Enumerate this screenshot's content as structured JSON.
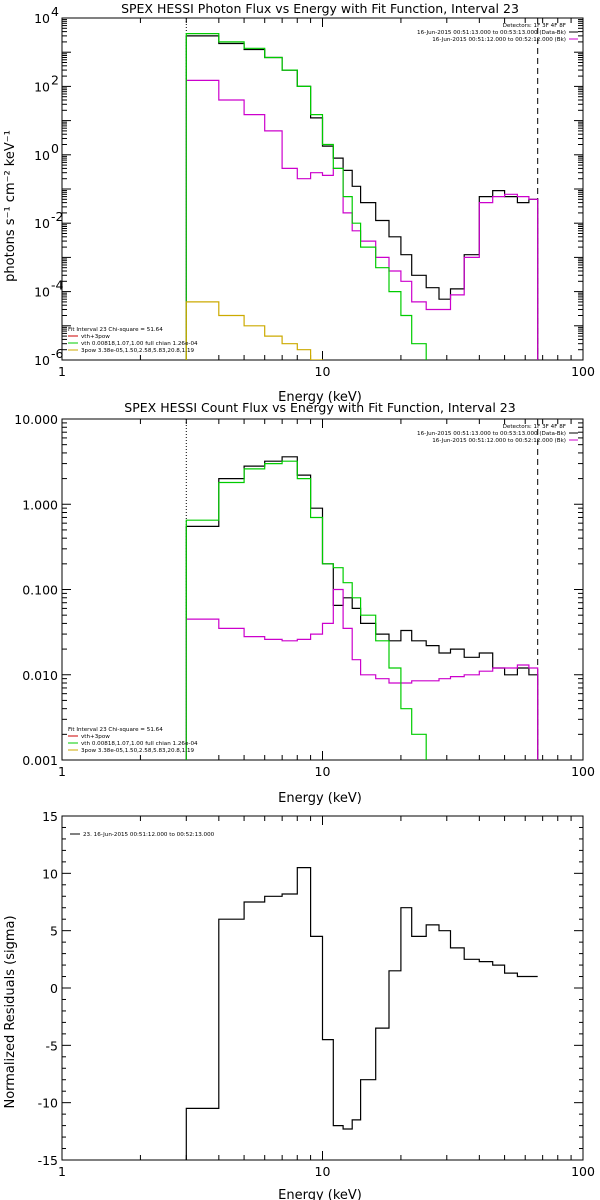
{
  "chart_data": [
    {
      "type": "line",
      "title": "SPEX HESSI Photon Flux vs Energy with Fit Function, Interval 23",
      "xlabel": "Energy (keV)",
      "ylabel": "photons s⁻¹ cm⁻² keV⁻¹",
      "xscale": "log",
      "yscale": "log",
      "xlim": [
        1,
        100
      ],
      "ylim": [
        1e-06,
        10000.0
      ],
      "x_ticks": [
        {
          "v": 1,
          "label": "1"
        },
        {
          "v": 10,
          "label": "10"
        },
        {
          "v": 100,
          "label": "100"
        }
      ],
      "y_ticks": [
        {
          "v": 1e-06,
          "base": "10",
          "exp": "-6"
        },
        {
          "v": 0.0001,
          "base": "10",
          "exp": "-4"
        },
        {
          "v": 0.01,
          "base": "10",
          "exp": "-2"
        },
        {
          "v": 1,
          "base": "10",
          "exp": "0"
        },
        {
          "v": 100,
          "base": "10",
          "exp": "2"
        },
        {
          "v": 10000.0,
          "base": "10",
          "exp": "4"
        }
      ],
      "vlines": [
        {
          "x": 3.0,
          "style": "dotted",
          "color": "#000000"
        },
        {
          "x": 67,
          "style": "dashed",
          "color": "#000000"
        }
      ],
      "legend_upper": {
        "position": "top-right",
        "lines": [
          {
            "text": "Detectors: 1F 3F 4F 8F",
            "color": null
          },
          {
            "text": "16-Jun-2015 00:51:13.000 to 00:53:13.000 (Data-Bk)",
            "color": "#000000"
          },
          {
            "text": "16-Jun-2015 00:51:12.000 to 00:52:12.000 (Bk)",
            "color": "#cc00cc"
          }
        ]
      },
      "legend_lower": {
        "position": "bottom-left",
        "lines": [
          {
            "text": "Fit Interval 23   Chi-square = 51.64",
            "color": null
          },
          {
            "text": "vth+3pow",
            "color": "#cc0000"
          },
          {
            "text": "vth 0.00818,1.07,1.00  full chian 1.26e-04",
            "color": "#00cc00"
          },
          {
            "text": "3pow 3.38e-05,1.50,2.58,5.83,20.8,1.19",
            "color": "#ccaa00"
          }
        ]
      },
      "series": [
        {
          "color": "#000000",
          "edges": [
            3,
            4,
            5,
            6,
            7,
            8,
            9,
            10,
            11,
            12,
            13,
            14,
            16,
            18,
            20,
            22,
            25,
            28,
            31,
            35,
            40,
            45,
            50,
            56,
            62,
            67
          ],
          "values": [
            3000,
            1800,
            1200,
            700,
            300,
            100,
            12,
            1.8,
            0.8,
            0.35,
            0.12,
            0.04,
            0.012,
            0.004,
            0.0012,
            0.0003,
            0.00013,
            6e-05,
            0.00012,
            0.0012,
            0.06,
            0.09,
            0.06,
            0.04,
            0.05
          ]
        },
        {
          "color": "#cc00cc",
          "edges": [
            3,
            4,
            5,
            6,
            7,
            8,
            9,
            10,
            11,
            12,
            13,
            14,
            16,
            18,
            20,
            22,
            25,
            28,
            31,
            35,
            40,
            45,
            50,
            56,
            62,
            67
          ],
          "values": [
            150,
            40,
            15,
            5,
            0.4,
            0.2,
            0.3,
            0.25,
            0.4,
            0.02,
            0.006,
            0.003,
            0.001,
            0.0004,
            0.0002,
            5e-05,
            3e-05,
            3e-05,
            8e-05,
            0.001,
            0.04,
            0.06,
            0.07,
            0.06,
            0.05
          ]
        },
        {
          "color": "#00cc00",
          "edges": [
            3,
            4,
            5,
            6,
            7,
            8,
            9,
            10,
            11,
            12,
            13,
            14,
            16,
            18,
            20,
            22,
            25
          ],
          "values": [
            3500,
            2000,
            1300,
            700,
            300,
            100,
            15,
            2,
            0.4,
            0.06,
            0.01,
            0.002,
            0.0005,
            0.0001,
            2e-05,
            3e-06
          ]
        },
        {
          "color": "#ccaa00",
          "edges": [
            3,
            4,
            5,
            6,
            7,
            8,
            9,
            10
          ],
          "values": [
            5e-05,
            2e-05,
            1e-05,
            5e-06,
            3e-06,
            2e-06,
            1e-06
          ]
        }
      ]
    },
    {
      "type": "line",
      "title": "SPEX HESSI Count Flux vs Energy with Fit Function, Interval 23",
      "xlabel": "Energy (keV)",
      "ylabel": "",
      "xscale": "log",
      "yscale": "log",
      "xlim": [
        1,
        100
      ],
      "ylim": [
        0.001,
        10
      ],
      "x_ticks": [
        {
          "v": 1,
          "label": "1"
        },
        {
          "v": 10,
          "label": "10"
        },
        {
          "v": 100,
          "label": "100"
        }
      ],
      "y_ticks": [
        {
          "v": 0.001,
          "label": "0.001"
        },
        {
          "v": 0.01,
          "label": "0.010"
        },
        {
          "v": 0.1,
          "label": "0.100"
        },
        {
          "v": 1,
          "label": "1.000"
        },
        {
          "v": 10,
          "label": "10.000"
        }
      ],
      "vlines": [
        {
          "x": 3.0,
          "style": "dotted",
          "color": "#000000"
        },
        {
          "x": 67,
          "style": "dashed",
          "color": "#000000"
        }
      ],
      "legend_upper": {
        "position": "top-right",
        "lines": [
          {
            "text": "Detectors: 1F 3F 4F 8F",
            "color": null
          },
          {
            "text": "16-Jun-2015 00:51:13.000 to 00:53:13.000 (Data-Bk)",
            "color": "#000000"
          },
          {
            "text": "16-Jun-2015 00:51:12.000 to 00:52:12.000 (Bk)",
            "color": "#cc00cc"
          }
        ]
      },
      "legend_lower": {
        "position": "bottom-left",
        "lines": [
          {
            "text": "Fit Interval 23   Chi-square = 51.64",
            "color": null
          },
          {
            "text": "vth+3pow",
            "color": "#cc0000"
          },
          {
            "text": "vth 0.00818,1.07,1.00  full chian 1.26e-04",
            "color": "#00cc00"
          },
          {
            "text": "3pow 3.38e-05,1.50,2.58,5.83,20.8,1.19",
            "color": "#ccaa00"
          }
        ]
      },
      "series": [
        {
          "color": "#000000",
          "edges": [
            3,
            4,
            5,
            6,
            7,
            8,
            9,
            10,
            11,
            12,
            13,
            14,
            16,
            18,
            20,
            22,
            25,
            28,
            31,
            35,
            40,
            45,
            50,
            56,
            62,
            67
          ],
          "values": [
            0.55,
            2.0,
            2.8,
            3.2,
            3.6,
            2.2,
            0.9,
            0.2,
            0.065,
            0.08,
            0.06,
            0.04,
            0.03,
            0.025,
            0.033,
            0.025,
            0.022,
            0.018,
            0.02,
            0.016,
            0.018,
            0.012,
            0.01,
            0.012,
            0.01
          ]
        },
        {
          "color": "#cc00cc",
          "edges": [
            3,
            4,
            5,
            6,
            7,
            8,
            9,
            10,
            11,
            12,
            13,
            14,
            16,
            18,
            20,
            22,
            25,
            28,
            31,
            35,
            40,
            45,
            50,
            56,
            62,
            67
          ],
          "values": [
            0.045,
            0.035,
            0.028,
            0.026,
            0.025,
            0.026,
            0.03,
            0.04,
            0.1,
            0.035,
            0.015,
            0.01,
            0.009,
            0.008,
            0.008,
            0.0085,
            0.0085,
            0.009,
            0.0095,
            0.01,
            0.011,
            0.012,
            0.012,
            0.013,
            0.012
          ]
        },
        {
          "color": "#00cc00",
          "edges": [
            3,
            4,
            5,
            6,
            7,
            8,
            9,
            10,
            11,
            12,
            13,
            14,
            16,
            18,
            20,
            22,
            25
          ],
          "values": [
            0.65,
            1.8,
            2.6,
            3.0,
            3.2,
            2.0,
            0.7,
            0.2,
            0.18,
            0.12,
            0.08,
            0.05,
            0.025,
            0.012,
            0.004,
            0.002
          ]
        }
      ]
    },
    {
      "type": "line",
      "title": "",
      "xlabel": "Energy (keV)",
      "ylabel": "Normalized Residuals (sigma)",
      "xscale": "log",
      "yscale": "linear",
      "xlim": [
        1,
        100
      ],
      "ylim": [
        -15,
        15
      ],
      "x_ticks": [
        {
          "v": 1,
          "label": "1"
        },
        {
          "v": 10,
          "label": "10"
        },
        {
          "v": 100,
          "label": "100"
        }
      ],
      "y_ticks": [
        {
          "v": 15,
          "label": "15"
        },
        {
          "v": 10,
          "label": "10"
        },
        {
          "v": 5,
          "label": "5"
        },
        {
          "v": 0,
          "label": "0"
        },
        {
          "v": -5,
          "label": "-5"
        },
        {
          "v": -10,
          "label": "-10"
        },
        {
          "v": -15,
          "label": "-15"
        }
      ],
      "legend": {
        "position": "top-left",
        "lines": [
          {
            "text": "23. 16-Jun-2015 00:51:12.000 to 00:52:13.000",
            "color": "#000000"
          }
        ]
      },
      "series": [
        {
          "color": "#000000",
          "edges": [
            3,
            4,
            5,
            6,
            7,
            8,
            9,
            10,
            11,
            12,
            13,
            14,
            16,
            18,
            20,
            22,
            25,
            28,
            31,
            35,
            40,
            45,
            50,
            56,
            62,
            67
          ],
          "values": [
            -10.5,
            6.0,
            7.5,
            8.0,
            8.2,
            10.5,
            4.5,
            -4.5,
            -12.0,
            -12.3,
            -11.5,
            -8.0,
            -3.5,
            1.5,
            7.0,
            4.5,
            5.5,
            5.0,
            3.5,
            2.5,
            2.3,
            2.0,
            1.3,
            1.0,
            1.0
          ],
          "start_from": -15
        }
      ]
    }
  ]
}
